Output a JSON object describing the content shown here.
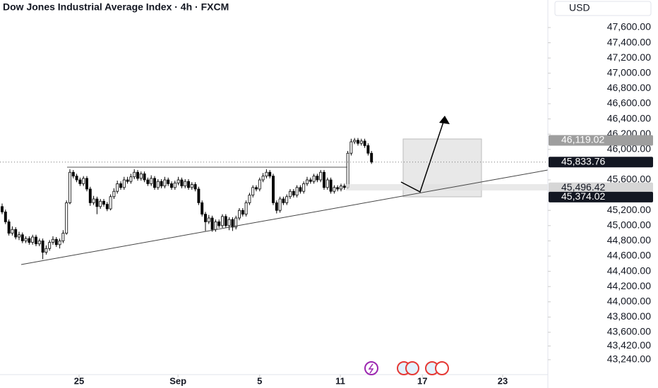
{
  "chart_data": {
    "type": "candlestick",
    "title": "Dow Jones Industrial Average Index · 4h · FXCM",
    "currency": "USD",
    "up_color": "#ffffff",
    "down_color": "#000000",
    "wick_color": "#000000",
    "ylim": [
      43054,
      47961
    ],
    "xlim": [
      -0.625,
      161.04
    ],
    "yticks": [
      {
        "value": 47600,
        "label": "47,600.00"
      },
      {
        "value": 47400,
        "label": "47,400.00"
      },
      {
        "value": 47200,
        "label": "47,200.00"
      },
      {
        "value": 47000,
        "label": "47,000.00"
      },
      {
        "value": 46800,
        "label": "46,800.00"
      },
      {
        "value": 46600,
        "label": "46,600.00"
      },
      {
        "value": 46400,
        "label": "46,400.00"
      },
      {
        "value": 46200,
        "label": "46,200.00"
      },
      {
        "value": 46000,
        "label": "46,000.00"
      },
      {
        "value": 45600,
        "label": "45,600.00"
      },
      {
        "value": 45200,
        "label": "45,200.00"
      },
      {
        "value": 45000,
        "label": "45,000.00"
      },
      {
        "value": 44800,
        "label": "44,800.00"
      },
      {
        "value": 44600,
        "label": "44,600.00"
      },
      {
        "value": 44400,
        "label": "44,400.00"
      },
      {
        "value": 44200,
        "label": "44,200.00"
      },
      {
        "value": 44000,
        "label": "44,000.00"
      },
      {
        "value": 43800,
        "label": "43,800.00"
      },
      {
        "value": 43600,
        "label": "43,600.00"
      },
      {
        "value": 43420,
        "label": "43,420.00"
      },
      {
        "value": 43240,
        "label": "43,240.00"
      }
    ],
    "xticks": [
      {
        "value": 22.7,
        "label": "25"
      },
      {
        "value": 51.9,
        "label": "Sep"
      },
      {
        "value": 76,
        "label": "5"
      },
      {
        "value": 99.8,
        "label": "11"
      },
      {
        "value": 124,
        "label": "17"
      },
      {
        "value": 147.7,
        "label": "23"
      }
    ],
    "price_labels": [
      {
        "value": 46119.02,
        "label": "46,119.02",
        "color": "#9e9e9e"
      },
      {
        "value": 45833.76,
        "label": "45,833.76",
        "color": "#131722"
      },
      {
        "value": 45496.42,
        "label": "45,496.42",
        "color": "#d6d6d6"
      },
      {
        "value": 45374.02,
        "label": "45,374.02",
        "color": "#131722"
      }
    ],
    "ohlc": [
      [
        45250,
        45290,
        45150,
        45180
      ],
      [
        45180,
        45210,
        45020,
        45050
      ],
      [
        45050,
        45080,
        44870,
        44900
      ],
      [
        44900,
        44990,
        44870,
        44950
      ],
      [
        44950,
        44980,
        44820,
        44850
      ],
      [
        44850,
        44920,
        44810,
        44880
      ],
      [
        44880,
        44910,
        44770,
        44800
      ],
      [
        44800,
        44860,
        44770,
        44830
      ],
      [
        44830,
        44860,
        44750,
        44780
      ],
      [
        44780,
        44880,
        44750,
        44850
      ],
      [
        44850,
        44880,
        44730,
        44760
      ],
      [
        44760,
        44830,
        44730,
        44800
      ],
      [
        44800,
        44830,
        44560,
        44650
      ],
      [
        44650,
        44740,
        44620,
        44700
      ],
      [
        44700,
        44810,
        44670,
        44780
      ],
      [
        44780,
        44860,
        44750,
        44820
      ],
      [
        44820,
        44850,
        44720,
        44750
      ],
      [
        44750,
        44830,
        44700,
        44800
      ],
      [
        44800,
        44940,
        44770,
        44900
      ],
      [
        44900,
        45330,
        44880,
        45300
      ],
      [
        45300,
        45740,
        45280,
        45700
      ],
      [
        45700,
        45730,
        45620,
        45650
      ],
      [
        45650,
        45680,
        45570,
        45600
      ],
      [
        45600,
        45630,
        45520,
        45550
      ],
      [
        45550,
        45650,
        45520,
        45620
      ],
      [
        45620,
        45650,
        45450,
        45480
      ],
      [
        45480,
        45510,
        45260,
        45300
      ],
      [
        45300,
        45390,
        45270,
        45350
      ],
      [
        45350,
        45380,
        45150,
        45250
      ],
      [
        45250,
        45350,
        45220,
        45320
      ],
      [
        45320,
        45350,
        45250,
        45280
      ],
      [
        45280,
        45310,
        45190,
        45220
      ],
      [
        45220,
        45410,
        45200,
        45380
      ],
      [
        45380,
        45490,
        45350,
        45450
      ],
      [
        45450,
        45590,
        45420,
        45550
      ],
      [
        45550,
        45580,
        45470,
        45500
      ],
      [
        45500,
        45640,
        45470,
        45600
      ],
      [
        45600,
        45640,
        45550,
        45580
      ],
      [
        45580,
        45680,
        45550,
        45640
      ],
      [
        45640,
        45740,
        45610,
        45700
      ],
      [
        45700,
        45730,
        45590,
        45620
      ],
      [
        45620,
        45710,
        45590,
        45680
      ],
      [
        45680,
        45710,
        45570,
        45600
      ],
      [
        45600,
        45630,
        45520,
        45550
      ],
      [
        45550,
        45660,
        45520,
        45620
      ],
      [
        45620,
        45650,
        45470,
        45500
      ],
      [
        45500,
        45610,
        45470,
        45580
      ],
      [
        45580,
        45610,
        45490,
        45520
      ],
      [
        45520,
        45640,
        45490,
        45600
      ],
      [
        45600,
        45630,
        45520,
        45550
      ],
      [
        45550,
        45580,
        45470,
        45500
      ],
      [
        45500,
        45590,
        45470,
        45560
      ],
      [
        45560,
        45640,
        45530,
        45600
      ],
      [
        45600,
        45630,
        45490,
        45520
      ],
      [
        45520,
        45610,
        45490,
        45580
      ],
      [
        45580,
        45610,
        45470,
        45500
      ],
      [
        45500,
        45570,
        45470,
        45540
      ],
      [
        45540,
        45570,
        45450,
        45480
      ],
      [
        45480,
        45510,
        45270,
        45300
      ],
      [
        45300,
        45330,
        45120,
        45150
      ],
      [
        45150,
        45180,
        44930,
        45050
      ],
      [
        45050,
        45140,
        45020,
        45100
      ],
      [
        45100,
        45130,
        44920,
        44950
      ],
      [
        44950,
        45080,
        44920,
        45050
      ],
      [
        45050,
        45080,
        44970,
        45000
      ],
      [
        45000,
        45150,
        44970,
        45120
      ],
      [
        45120,
        45150,
        44970,
        45000
      ],
      [
        45000,
        45110,
        44940,
        45080
      ],
      [
        45080,
        45110,
        44930,
        44980
      ],
      [
        44980,
        45130,
        44950,
        45100
      ],
      [
        45100,
        45230,
        45070,
        45200
      ],
      [
        45200,
        45230,
        45120,
        45150
      ],
      [
        45150,
        45330,
        45120,
        45300
      ],
      [
        45300,
        45430,
        45270,
        45400
      ],
      [
        45400,
        45530,
        45370,
        45500
      ],
      [
        45500,
        45530,
        45450,
        45480
      ],
      [
        45480,
        45630,
        45450,
        45600
      ],
      [
        45600,
        45690,
        45570,
        45650
      ],
      [
        45650,
        45740,
        45620,
        45700
      ],
      [
        45700,
        45730,
        45620,
        45650
      ],
      [
        45650,
        45680,
        45270,
        45300
      ],
      [
        45300,
        45330,
        45160,
        45200
      ],
      [
        45200,
        45380,
        45170,
        45350
      ],
      [
        45350,
        45380,
        45270,
        45300
      ],
      [
        45300,
        45410,
        45270,
        45380
      ],
      [
        45380,
        45480,
        45350,
        45450
      ],
      [
        45450,
        45480,
        45370,
        45400
      ],
      [
        45400,
        45530,
        45370,
        45500
      ],
      [
        45500,
        45530,
        45420,
        45450
      ],
      [
        45450,
        45580,
        45420,
        45550
      ],
      [
        45550,
        45640,
        45520,
        45600
      ],
      [
        45600,
        45630,
        45550,
        45580
      ],
      [
        45580,
        45680,
        45550,
        45650
      ],
      [
        45650,
        45680,
        45570,
        45600
      ],
      [
        45600,
        45730,
        45570,
        45700
      ],
      [
        45700,
        45730,
        45470,
        45500
      ],
      [
        45500,
        45630,
        45470,
        45600
      ],
      [
        45600,
        45630,
        45420,
        45450
      ],
      [
        45450,
        45530,
        45420,
        45500
      ],
      [
        45500,
        45530,
        45450,
        45480
      ],
      [
        45480,
        45550,
        45450,
        45520
      ],
      [
        45520,
        45550,
        45470,
        45500
      ],
      [
        45500,
        45980,
        45480,
        45950
      ],
      [
        45950,
        46140,
        45920,
        46100
      ],
      [
        46100,
        46150,
        46070,
        46120
      ],
      [
        46120,
        46150,
        46050,
        46080
      ],
      [
        46080,
        46140,
        46050,
        46110
      ],
      [
        46110,
        46140,
        46020,
        46050
      ],
      [
        46050,
        46080,
        45920,
        45950
      ],
      [
        45950,
        45980,
        45810,
        45834
      ]
    ]
  }
}
